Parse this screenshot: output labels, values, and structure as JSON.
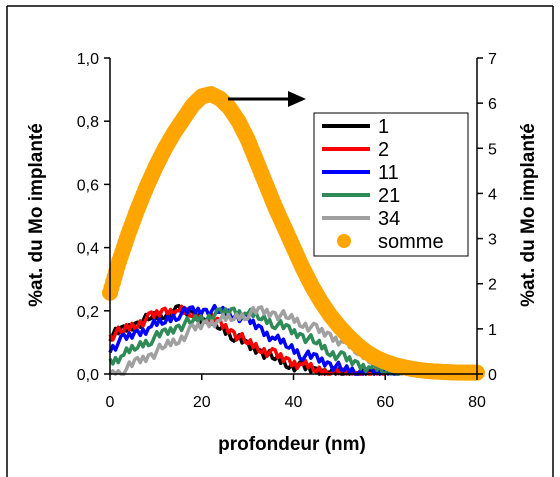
{
  "chart_data": {
    "type": "scatter",
    "xlabel": "profondeur (nm)",
    "ylabel": "%at. du Mo implanté",
    "y2label": "%at. du Mo implanté",
    "xlim": [
      0,
      80
    ],
    "ylim": [
      0,
      1.0
    ],
    "y2lim": [
      0,
      7
    ],
    "x_ticks": [
      "0",
      "20",
      "40",
      "60",
      "80"
    ],
    "y_ticks": [
      "0,0",
      "0,2",
      "0,4",
      "0,6",
      "0,8",
      "1,0"
    ],
    "y2_ticks": [
      "0",
      "1",
      "2",
      "3",
      "4",
      "5",
      "6",
      "7"
    ],
    "grid": false,
    "legend_position": "right",
    "series": [
      {
        "name": "1",
        "color": "#000000",
        "axis": "left",
        "x": [
          0,
          3,
          6,
          9,
          12,
          15,
          18,
          21,
          24,
          27,
          30,
          33,
          36,
          39,
          42,
          45,
          48,
          51,
          54,
          57,
          60
        ],
        "y": [
          0.12,
          0.14,
          0.16,
          0.18,
          0.19,
          0.2,
          0.19,
          0.17,
          0.15,
          0.12,
          0.09,
          0.07,
          0.05,
          0.03,
          0.02,
          0.01,
          0.005,
          0.002,
          0.0,
          0.0,
          0.0
        ]
      },
      {
        "name": "2",
        "color": "#ff0000",
        "axis": "left",
        "x": [
          0,
          3,
          6,
          9,
          12,
          15,
          18,
          21,
          24,
          27,
          30,
          33,
          36,
          39,
          42,
          45,
          48,
          51,
          54,
          57,
          60
        ],
        "y": [
          0.12,
          0.14,
          0.16,
          0.18,
          0.2,
          0.2,
          0.19,
          0.18,
          0.16,
          0.13,
          0.1,
          0.08,
          0.06,
          0.04,
          0.03,
          0.015,
          0.008,
          0.003,
          0.0,
          0.0,
          0.0
        ]
      },
      {
        "name": "11",
        "color": "#0000ff",
        "axis": "left",
        "x": [
          0,
          3,
          6,
          9,
          12,
          15,
          18,
          21,
          24,
          27,
          30,
          33,
          36,
          39,
          42,
          45,
          48,
          51,
          54,
          57,
          60,
          63
        ],
        "y": [
          0.08,
          0.11,
          0.13,
          0.15,
          0.17,
          0.19,
          0.2,
          0.2,
          0.2,
          0.19,
          0.17,
          0.14,
          0.11,
          0.09,
          0.06,
          0.05,
          0.03,
          0.015,
          0.008,
          0.003,
          0.001,
          0.0
        ]
      },
      {
        "name": "21",
        "color": "#2e8b57",
        "axis": "left",
        "x": [
          0,
          3,
          6,
          9,
          12,
          15,
          18,
          21,
          24,
          27,
          30,
          33,
          36,
          39,
          42,
          45,
          48,
          51,
          54,
          57,
          60,
          63,
          66
        ],
        "y": [
          0.04,
          0.06,
          0.09,
          0.11,
          0.13,
          0.15,
          0.17,
          0.18,
          0.19,
          0.2,
          0.19,
          0.18,
          0.16,
          0.14,
          0.12,
          0.1,
          0.07,
          0.05,
          0.03,
          0.02,
          0.01,
          0.005,
          0.0
        ]
      },
      {
        "name": "34",
        "color": "#a0a0a0",
        "axis": "left",
        "x": [
          0,
          3,
          6,
          9,
          12,
          15,
          18,
          21,
          24,
          27,
          30,
          33,
          36,
          39,
          42,
          45,
          48,
          51,
          54,
          57,
          60,
          63,
          66,
          69
        ],
        "y": [
          0.0,
          0.01,
          0.04,
          0.06,
          0.09,
          0.11,
          0.14,
          0.16,
          0.17,
          0.18,
          0.19,
          0.2,
          0.19,
          0.18,
          0.16,
          0.14,
          0.12,
          0.1,
          0.07,
          0.05,
          0.03,
          0.015,
          0.005,
          0.0
        ]
      },
      {
        "name": "somme",
        "color": "#ffa500",
        "axis": "right",
        "x": [
          0,
          2,
          4,
          6,
          8,
          10,
          12,
          14,
          16,
          18,
          20,
          22,
          24,
          26,
          28,
          30,
          32,
          34,
          36,
          38,
          40,
          42,
          44,
          46,
          48,
          50,
          52,
          54,
          56,
          58,
          60,
          62,
          64,
          66,
          68,
          70,
          72,
          74,
          76,
          78,
          80
        ],
        "y": [
          1.8,
          2.5,
          3.1,
          3.65,
          4.15,
          4.6,
          5.0,
          5.35,
          5.65,
          5.95,
          6.15,
          6.2,
          6.1,
          5.9,
          5.6,
          5.2,
          4.7,
          4.2,
          3.7,
          3.25,
          2.8,
          2.35,
          1.95,
          1.6,
          1.3,
          1.05,
          0.83,
          0.64,
          0.48,
          0.36,
          0.27,
          0.2,
          0.15,
          0.11,
          0.08,
          0.06,
          0.05,
          0.04,
          0.03,
          0.03,
          0.03
        ]
      }
    ],
    "arrow_direction": "right"
  }
}
